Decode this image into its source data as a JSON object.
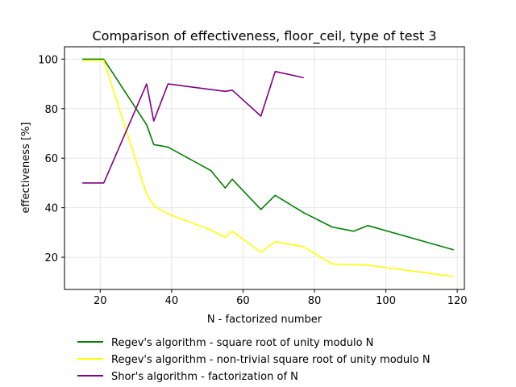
{
  "chart_data": {
    "type": "line",
    "title": "Comparison of effectiveness, floor_ceil, type of test 3",
    "xlabel": "N - factorized number",
    "ylabel": "effectiveness [%]",
    "xlim": [
      10,
      122
    ],
    "ylim": [
      7,
      105
    ],
    "xticks": [
      20,
      40,
      60,
      80,
      100,
      120
    ],
    "yticks": [
      20,
      40,
      60,
      80,
      100
    ],
    "grid": true,
    "legend_position": "below",
    "series": [
      {
        "name": "Regev's algorithm - square root of unity modulo N",
        "color": "#008000",
        "x": [
          15,
          21,
          33,
          35,
          39,
          51,
          55,
          57,
          65,
          69,
          77,
          85,
          91,
          95,
          119
        ],
        "y": [
          100,
          100,
          73.5,
          65.5,
          64.5,
          55,
          48,
          51.5,
          39.3,
          45,
          38,
          32.2,
          30.5,
          32.8,
          23
        ]
      },
      {
        "name": "Regev's algorithm - non-trivial square root of unity modulo N",
        "color": "#ffff00",
        "x": [
          15,
          21,
          33,
          35,
          39,
          51,
          55,
          57,
          65,
          69,
          77,
          85,
          95,
          119
        ],
        "y": [
          99.5,
          99.5,
          45.5,
          40.8,
          37.5,
          31,
          28,
          30.5,
          22,
          26.3,
          24.2,
          17.3,
          16.8,
          12.2
        ]
      },
      {
        "name": "Shor's algorithm - factorization of N",
        "color": "#800080",
        "x": [
          15,
          21,
          33,
          35,
          39,
          55,
          57,
          65,
          69,
          77
        ],
        "y": [
          50,
          50,
          90,
          75,
          90,
          87,
          87.5,
          77,
          95,
          92.5
        ]
      }
    ]
  }
}
